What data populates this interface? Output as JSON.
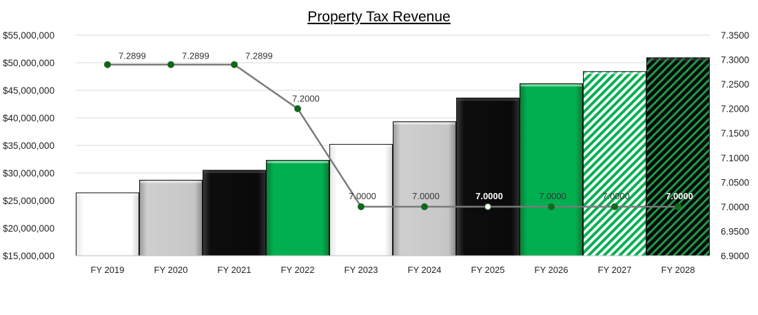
{
  "chart_data": {
    "type": "bar",
    "title": "Property Tax Revenue",
    "categories": [
      "FY 2019",
      "FY 2020",
      "FY 2021",
      "FY 2022",
      "FY 2023",
      "FY 2024",
      "FY 2025",
      "FY 2026",
      "FY 2027",
      "FY 2028"
    ],
    "series": [
      {
        "type": "bar",
        "axis": "left",
        "values": [
          26400000,
          28700000,
          30500000,
          32300000,
          35200000,
          39300000,
          43600000,
          46200000,
          48400000,
          50900000
        ],
        "fill_styles": [
          "white",
          "silver",
          "black",
          "green",
          "white",
          "silver",
          "black",
          "green",
          "green-hatch",
          "black-hatch"
        ]
      },
      {
        "type": "line",
        "axis": "right",
        "values": [
          7.2899,
          7.2899,
          7.2899,
          7.2,
          7.0,
          7.0,
          7.0,
          7.0,
          7.0,
          7.0
        ],
        "labels": [
          "7.2899",
          "7.2899",
          "7.2899",
          "7.2000",
          "7.0000",
          "7.0000",
          "7.0000",
          "7.0000",
          "7.0000",
          "7.0000"
        ],
        "marker_colors": [
          "#0a6b1a",
          "#0a6b1a",
          "#0a6b1a",
          "#0a6b1a",
          "#0a6b1a",
          "#0a6b1a",
          "#ffffff",
          "#0a6b1a",
          "#0a6b1a",
          "#0a6b1a"
        ],
        "line_color": "#7a7a7a"
      }
    ],
    "y_left": {
      "ylim": [
        15000000,
        55000000
      ],
      "ticks": [
        "$15,000,000",
        "$20,000,000",
        "$25,000,000",
        "$30,000,000",
        "$35,000,000",
        "$40,000,000",
        "$45,000,000",
        "$50,000,000",
        "$55,000,000"
      ]
    },
    "y_right": {
      "ylim": [
        6.9,
        7.35
      ],
      "ticks": [
        "6.9000",
        "6.9500",
        "7.0000",
        "7.0500",
        "7.1000",
        "7.1500",
        "7.2000",
        "7.2500",
        "7.3000",
        "7.3500"
      ]
    },
    "grid": true,
    "colors": {
      "green": "#00b050",
      "black": "#0a0a0a",
      "silver": "#c0c0c0",
      "white": "#ffffff",
      "gridline": "#d9d9d9"
    }
  }
}
